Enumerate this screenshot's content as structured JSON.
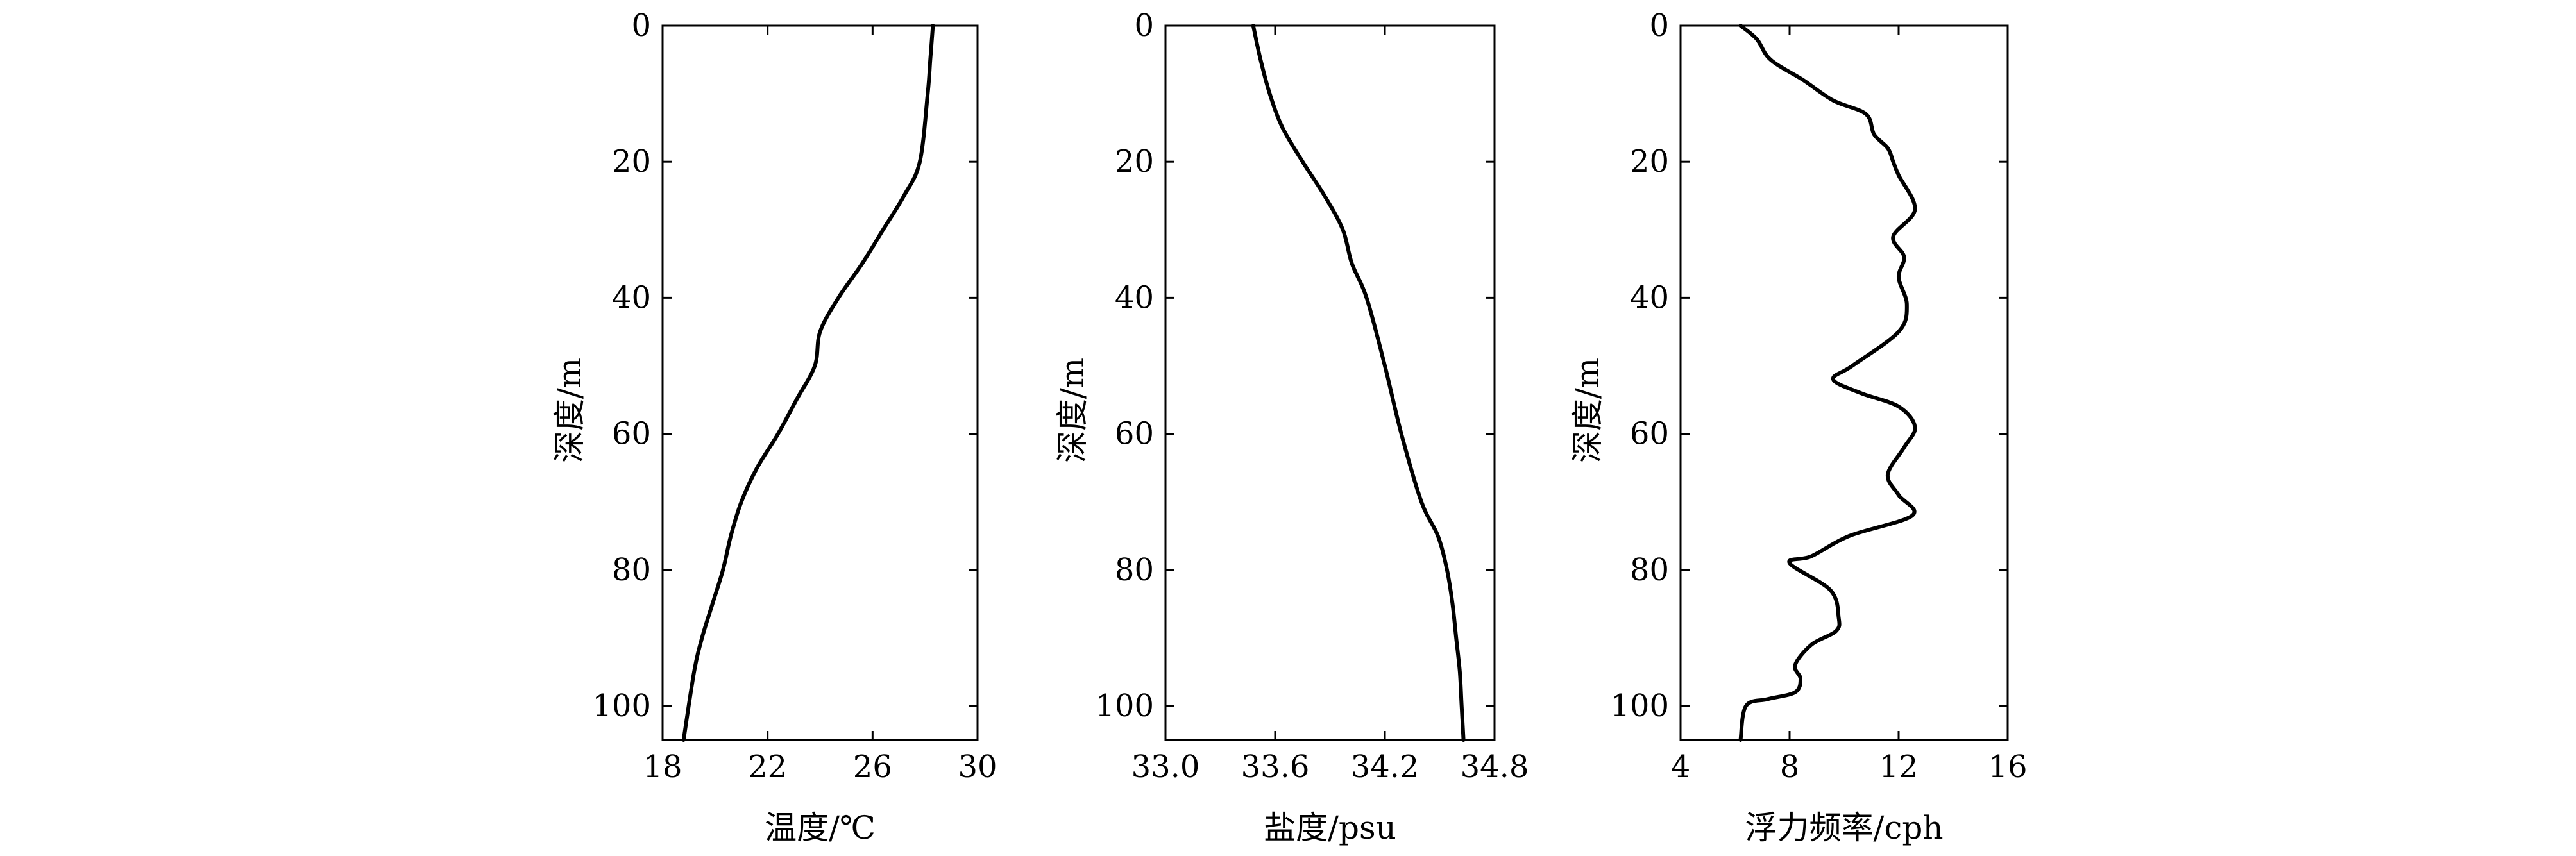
{
  "chart_data": [
    {
      "type": "line",
      "title": "",
      "xlabel": "温度/℃",
      "ylabel": "深度/m",
      "xlim": [
        18,
        30
      ],
      "ylim": [
        0,
        105
      ],
      "y_reversed": true,
      "xticks": [
        18,
        22,
        26,
        30
      ],
      "xtick_labels": [
        "18",
        "22",
        "26",
        "30"
      ],
      "yticks": [
        0,
        20,
        40,
        60,
        80,
        100
      ],
      "ytick_labels": [
        "0",
        "20",
        "40",
        "60",
        "80",
        "100"
      ],
      "grid": false,
      "series": [
        {
          "x": [
            28.3,
            28.2,
            28.1,
            27.8,
            27.2,
            26.4,
            25.6,
            24.7,
            24.0,
            23.8,
            23.1,
            22.4,
            21.6,
            21.0,
            20.6,
            20.3,
            19.9,
            19.5,
            19.2,
            18.8
          ],
          "y": [
            0,
            5,
            10,
            20,
            25,
            30,
            35,
            40,
            45,
            50,
            55,
            60,
            65,
            70,
            75,
            80,
            85,
            90,
            95,
            105
          ]
        }
      ]
    },
    {
      "type": "line",
      "title": "",
      "xlabel": "盐度/psu",
      "ylabel": "深度/m",
      "xlim": [
        33.0,
        34.8
      ],
      "ylim": [
        0,
        105
      ],
      "y_reversed": true,
      "xticks": [
        33.0,
        33.6,
        34.2,
        34.8
      ],
      "xtick_labels": [
        "33.0",
        "33.6",
        "34.2",
        "34.8"
      ],
      "yticks": [
        0,
        20,
        40,
        60,
        80,
        100
      ],
      "ytick_labels": [
        "0",
        "20",
        "40",
        "60",
        "80",
        "100"
      ],
      "grid": false,
      "series": [
        {
          "x": [
            33.48,
            33.52,
            33.57,
            33.64,
            33.75,
            33.87,
            33.97,
            34.02,
            34.1,
            34.2,
            34.29,
            34.4,
            34.49,
            34.54,
            34.57,
            34.59,
            34.61,
            34.62,
            34.63
          ],
          "y": [
            0,
            5,
            10,
            15,
            20,
            25,
            30,
            35,
            40,
            50,
            60,
            70,
            75,
            80,
            85,
            90,
            95,
            100,
            105
          ]
        }
      ]
    },
    {
      "type": "line",
      "title": "",
      "xlabel": "浮力频率/cph",
      "ylabel": "深度/m",
      "xlim": [
        4,
        16
      ],
      "ylim": [
        0,
        105
      ],
      "y_reversed": true,
      "xticks": [
        4,
        8,
        12,
        16
      ],
      "xtick_labels": [
        "4",
        "8",
        "12",
        "16"
      ],
      "yticks": [
        0,
        20,
        40,
        60,
        80,
        100
      ],
      "ytick_labels": [
        "0",
        "20",
        "40",
        "60",
        "80",
        "100"
      ],
      "grid": false,
      "series": [
        {
          "x": [
            6.2,
            6.8,
            7.3,
            8.5,
            9.6,
            10.8,
            11.1,
            11.6,
            11.8,
            12.0,
            12.6,
            11.8,
            12.2,
            12.0,
            12.3,
            12.0,
            10.3,
            9.6,
            10.6,
            12.0,
            12.6,
            12.2,
            11.6,
            12.0,
            12.5,
            10.2,
            8.8,
            8.0,
            9.5,
            9.8,
            9.7,
            8.8,
            8.2,
            8.4,
            8.2,
            7.2,
            6.4,
            6.2
          ],
          "y": [
            0,
            2,
            5,
            8,
            11,
            13,
            16,
            18,
            20,
            22,
            27,
            31,
            34,
            37,
            41,
            45,
            50,
            52,
            54,
            56,
            59,
            62,
            66,
            69,
            72,
            75,
            78,
            79,
            83,
            87,
            89,
            91,
            94,
            96,
            98,
            99,
            100,
            105
          ]
        }
      ]
    }
  ]
}
